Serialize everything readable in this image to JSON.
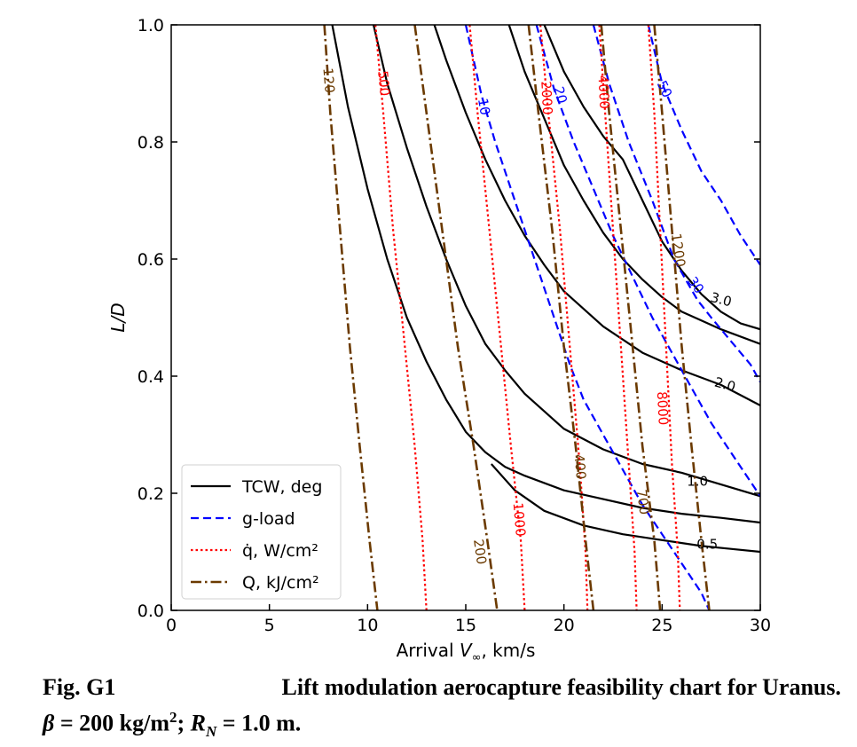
{
  "caption": {
    "number": "Fig. G1",
    "title": "Lift modulation aerocapture feasibility chart for Uranus.",
    "parameters": "β = 200 kg/m²; R_N = 1.0 m."
  },
  "chart_data": {
    "type": "line",
    "title": "",
    "xlabel": "Arrival V∞, km/s",
    "ylabel": "L/D",
    "xlim": [
      0,
      30
    ],
    "ylim": [
      0,
      1.0
    ],
    "xticks": [
      0,
      5,
      10,
      15,
      20,
      25,
      30
    ],
    "yticks": [
      0.0,
      0.2,
      0.4,
      0.6,
      0.8,
      1.0
    ],
    "xtick_labels": [
      "0",
      "5",
      "10",
      "15",
      "20",
      "25",
      "30"
    ],
    "ytick_labels": [
      "0.0",
      "0.2",
      "0.4",
      "0.6",
      "0.8",
      "1.0"
    ],
    "grid": false,
    "legend_position": "lower-left",
    "legend": [
      {
        "key": "tcw",
        "label": "TCW, deg",
        "color": "#000000",
        "style": "solid"
      },
      {
        "key": "gload",
        "label": "g-load",
        "color": "#0000ff",
        "style": "dashed"
      },
      {
        "key": "heatrate",
        "label": "q̇, W/cm²",
        "color": "#ff0000",
        "style": "dotted"
      },
      {
        "key": "heatload",
        "label": "Q, kJ/cm²",
        "color": "#6b3a00",
        "style": "dashdot"
      }
    ],
    "series": [
      {
        "group": "tcw",
        "label": "0.5",
        "points": [
          [
            16.3,
            0.25
          ],
          [
            17.5,
            0.205
          ],
          [
            19,
            0.17
          ],
          [
            21,
            0.145
          ],
          [
            23,
            0.13
          ],
          [
            25,
            0.12
          ],
          [
            27,
            0.11
          ],
          [
            28.5,
            0.105
          ],
          [
            30,
            0.1
          ]
        ]
      },
      {
        "group": "tcw",
        "label": "1.0",
        "points": [
          [
            8.2,
            1.0
          ],
          [
            9,
            0.86
          ],
          [
            10,
            0.72
          ],
          [
            11,
            0.6
          ],
          [
            12,
            0.5
          ],
          [
            13,
            0.425
          ],
          [
            14,
            0.36
          ],
          [
            15,
            0.305
          ],
          [
            16,
            0.27
          ],
          [
            17,
            0.245
          ],
          [
            18,
            0.23
          ],
          [
            20,
            0.205
          ],
          [
            22,
            0.19
          ],
          [
            24,
            0.175
          ],
          [
            26,
            0.165
          ],
          [
            28,
            0.158
          ],
          [
            30,
            0.15
          ]
        ]
      },
      {
        "group": "tcw",
        "label": "2.0",
        "points": [
          [
            10.3,
            1.0
          ],
          [
            11,
            0.9
          ],
          [
            12,
            0.79
          ],
          [
            13,
            0.69
          ],
          [
            14,
            0.6
          ],
          [
            15,
            0.52
          ],
          [
            16,
            0.455
          ],
          [
            17,
            0.41
          ],
          [
            18,
            0.37
          ],
          [
            20,
            0.31
          ],
          [
            22,
            0.275
          ],
          [
            24,
            0.25
          ],
          [
            26,
            0.235
          ],
          [
            28,
            0.215
          ],
          [
            30,
            0.195
          ]
        ]
      },
      {
        "group": "tcw",
        "label": "3.0",
        "points": [
          [
            13.4,
            1.0
          ],
          [
            14,
            0.94
          ],
          [
            15,
            0.85
          ],
          [
            16,
            0.77
          ],
          [
            17,
            0.7
          ],
          [
            18,
            0.64
          ],
          [
            19,
            0.59
          ],
          [
            20,
            0.545
          ],
          [
            22,
            0.485
          ],
          [
            24,
            0.44
          ],
          [
            26,
            0.41
          ],
          [
            28,
            0.385
          ],
          [
            30,
            0.35
          ]
        ]
      },
      {
        "group": "tcw",
        "label": "",
        "points": [
          [
            17.2,
            1.0
          ],
          [
            18,
            0.92
          ],
          [
            19,
            0.84
          ],
          [
            20,
            0.76
          ],
          [
            21,
            0.7
          ],
          [
            22,
            0.645
          ],
          [
            23,
            0.6
          ],
          [
            24,
            0.565
          ],
          [
            25,
            0.535
          ],
          [
            26,
            0.51
          ],
          [
            27,
            0.495
          ],
          [
            28,
            0.48
          ],
          [
            30,
            0.455
          ]
        ]
      },
      {
        "group": "tcw",
        "label": "",
        "points": [
          [
            19,
            1.0
          ],
          [
            20,
            0.92
          ],
          [
            21,
            0.86
          ],
          [
            22,
            0.81
          ],
          [
            23,
            0.77
          ],
          [
            24,
            0.7
          ],
          [
            25,
            0.63
          ],
          [
            26,
            0.58
          ],
          [
            27,
            0.54
          ],
          [
            28,
            0.51
          ],
          [
            29,
            0.49
          ],
          [
            30,
            0.48
          ]
        ]
      },
      {
        "group": "gload",
        "label": "10",
        "points": [
          [
            15,
            1.0
          ],
          [
            15.8,
            0.88
          ],
          [
            16.5,
            0.8
          ],
          [
            17.5,
            0.7
          ],
          [
            18.5,
            0.6
          ],
          [
            19.5,
            0.5
          ],
          [
            20.3,
            0.42
          ],
          [
            21,
            0.36
          ],
          [
            22,
            0.3
          ],
          [
            23,
            0.24
          ],
          [
            24,
            0.18
          ],
          [
            25,
            0.13
          ],
          [
            26,
            0.08
          ],
          [
            27,
            0.03
          ],
          [
            27.4,
            0.0
          ]
        ]
      },
      {
        "group": "gload",
        "label": "20",
        "points": [
          [
            18.6,
            1.0
          ],
          [
            19.5,
            0.89
          ],
          [
            20.5,
            0.8
          ],
          [
            21.5,
            0.72
          ],
          [
            22.5,
            0.64
          ],
          [
            23.5,
            0.57
          ],
          [
            24.5,
            0.5
          ],
          [
            25.5,
            0.44
          ],
          [
            26.5,
            0.38
          ],
          [
            27.5,
            0.32
          ],
          [
            28.5,
            0.27
          ],
          [
            29.5,
            0.22
          ],
          [
            30,
            0.195
          ]
        ]
      },
      {
        "group": "gload",
        "label": "30",
        "points": [
          [
            21.5,
            1.0
          ],
          [
            22.3,
            0.9
          ],
          [
            23.3,
            0.8
          ],
          [
            24.5,
            0.7
          ],
          [
            25.6,
            0.6
          ],
          [
            26.8,
            0.53
          ],
          [
            27.5,
            0.5
          ],
          [
            28.5,
            0.46
          ],
          [
            29.5,
            0.42
          ],
          [
            30,
            0.39
          ]
        ]
      },
      {
        "group": "gload",
        "label": "50",
        "points": [
          [
            24.3,
            1.0
          ],
          [
            25,
            0.9
          ],
          [
            26,
            0.82
          ],
          [
            27,
            0.75
          ],
          [
            28,
            0.7
          ],
          [
            29,
            0.64
          ],
          [
            30,
            0.59
          ]
        ]
      },
      {
        "group": "heatrate",
        "label": "500",
        "points": [
          [
            10.4,
            1.0
          ],
          [
            10.8,
            0.85
          ],
          [
            11.3,
            0.65
          ],
          [
            11.9,
            0.45
          ],
          [
            12.4,
            0.28
          ],
          [
            12.8,
            0.12
          ],
          [
            13.0,
            0.0
          ]
        ]
      },
      {
        "group": "heatrate",
        "label": "1000",
        "points": [
          [
            15.2,
            1.0
          ],
          [
            15.6,
            0.85
          ],
          [
            16.2,
            0.65
          ],
          [
            16.8,
            0.45
          ],
          [
            17.3,
            0.28
          ],
          [
            17.8,
            0.12
          ],
          [
            18.0,
            0.0
          ]
        ]
      },
      {
        "group": "heatrate",
        "label": "2000",
        "points": [
          [
            18.8,
            1.0
          ],
          [
            19.2,
            0.85
          ],
          [
            19.8,
            0.65
          ],
          [
            20.3,
            0.45
          ],
          [
            20.8,
            0.25
          ],
          [
            21.1,
            0.1
          ],
          [
            21.2,
            0.0
          ]
        ]
      },
      {
        "group": "heatrate",
        "label": "4000",
        "points": [
          [
            21.8,
            1.0
          ],
          [
            22.1,
            0.85
          ],
          [
            22.5,
            0.65
          ],
          [
            22.9,
            0.45
          ],
          [
            23.3,
            0.25
          ],
          [
            23.6,
            0.1
          ],
          [
            23.7,
            0.0
          ]
        ]
      },
      {
        "group": "heatrate",
        "label": "8000",
        "points": [
          [
            24.3,
            1.0
          ],
          [
            24.6,
            0.85
          ],
          [
            24.9,
            0.65
          ],
          [
            25.2,
            0.45
          ],
          [
            25.5,
            0.25
          ],
          [
            25.8,
            0.1
          ],
          [
            25.9,
            0.0
          ]
        ]
      },
      {
        "group": "heatload",
        "label": "120",
        "points": [
          [
            7.8,
            1.0
          ],
          [
            8.1,
            0.85
          ],
          [
            8.6,
            0.65
          ],
          [
            9.1,
            0.45
          ],
          [
            9.6,
            0.28
          ],
          [
            10.1,
            0.12
          ],
          [
            10.5,
            0.0
          ]
        ]
      },
      {
        "group": "heatload",
        "label": "200",
        "points": [
          [
            12.4,
            1.0
          ],
          [
            13,
            0.85
          ],
          [
            13.8,
            0.65
          ],
          [
            14.6,
            0.45
          ],
          [
            15.4,
            0.28
          ],
          [
            16.1,
            0.12
          ],
          [
            16.6,
            0.0
          ]
        ]
      },
      {
        "group": "heatload",
        "label": "400",
        "points": [
          [
            18.2,
            1.0
          ],
          [
            18.7,
            0.85
          ],
          [
            19.4,
            0.65
          ],
          [
            20,
            0.45
          ],
          [
            20.6,
            0.28
          ],
          [
            21.1,
            0.12
          ],
          [
            21.5,
            0.0
          ]
        ]
      },
      {
        "group": "heatload",
        "label": "700",
        "points": [
          [
            21.9,
            1.0
          ],
          [
            22.3,
            0.85
          ],
          [
            22.9,
            0.65
          ],
          [
            23.5,
            0.45
          ],
          [
            24,
            0.28
          ],
          [
            24.6,
            0.12
          ],
          [
            24.9,
            0.0
          ]
        ]
      },
      {
        "group": "heatload",
        "label": "1200",
        "points": [
          [
            24.6,
            1.0
          ],
          [
            25,
            0.85
          ],
          [
            25.5,
            0.65
          ],
          [
            26,
            0.45
          ],
          [
            26.5,
            0.28
          ],
          [
            27,
            0.12
          ],
          [
            27.4,
            0.0
          ]
        ]
      }
    ],
    "contour_labels": [
      {
        "text": "0.5",
        "group": "tcw",
        "x": 27.3,
        "y": 0.112,
        "angle": 0
      },
      {
        "text": "1.0",
        "group": "tcw",
        "x": 26.8,
        "y": 0.22,
        "angle": 0
      },
      {
        "text": "2.0",
        "group": "tcw",
        "x": 28.2,
        "y": 0.385,
        "angle": 15
      },
      {
        "text": "3.0",
        "group": "tcw",
        "x": 28.0,
        "y": 0.53,
        "angle": 15
      },
      {
        "text": "10",
        "group": "gload",
        "x": 15.9,
        "y": 0.86,
        "angle": 80
      },
      {
        "text": "20",
        "group": "gload",
        "x": 19.8,
        "y": 0.88,
        "angle": 75
      },
      {
        "text": "30",
        "group": "gload",
        "x": 26.7,
        "y": 0.555,
        "angle": 55
      },
      {
        "text": "50",
        "group": "gload",
        "x": 25.1,
        "y": 0.89,
        "angle": 65
      },
      {
        "text": "500",
        "group": "heatrate",
        "x": 10.8,
        "y": 0.9,
        "angle": 85
      },
      {
        "text": "1000",
        "group": "heatrate",
        "x": 17.7,
        "y": 0.155,
        "angle": 85
      },
      {
        "text": "2000",
        "group": "heatrate",
        "x": 19.1,
        "y": 0.875,
        "angle": 87
      },
      {
        "text": "4000",
        "group": "heatrate",
        "x": 22.0,
        "y": 0.885,
        "angle": 87
      },
      {
        "text": "8000",
        "group": "heatrate",
        "x": 25.0,
        "y": 0.345,
        "angle": 87
      },
      {
        "text": "120",
        "group": "heatload",
        "x": 8.0,
        "y": 0.905,
        "angle": 85
      },
      {
        "text": "200",
        "group": "heatload",
        "x": 15.7,
        "y": 0.1,
        "angle": 82
      },
      {
        "text": "400",
        "group": "heatload",
        "x": 20.8,
        "y": 0.245,
        "angle": 85
      },
      {
        "text": "700",
        "group": "heatload",
        "x": 24.0,
        "y": 0.185,
        "angle": 82
      },
      {
        "text": "1200",
        "group": "heatload",
        "x": 25.8,
        "y": 0.615,
        "angle": 82
      }
    ]
  }
}
